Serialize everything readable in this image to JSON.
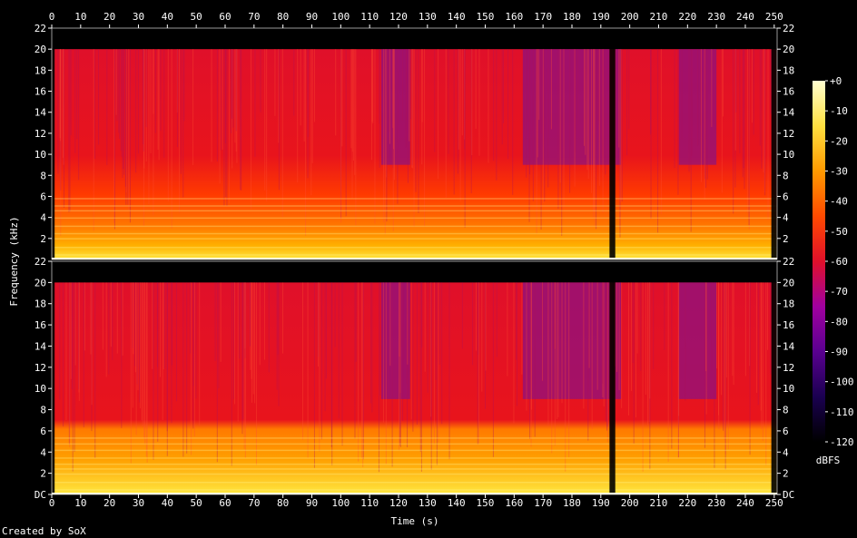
{
  "chart_data": {
    "type": "heatmap",
    "title": "",
    "xlabel": "Time (s)",
    "ylabel": "Frequency (kHz)",
    "xlim": [
      0,
      251
    ],
    "ylim": [
      0,
      22
    ],
    "x_ticks": [
      "0",
      "10",
      "20",
      "30",
      "40",
      "50",
      "60",
      "70",
      "80",
      "90",
      "100",
      "110",
      "120",
      "130",
      "140",
      "150",
      "160",
      "170",
      "180",
      "190",
      "200",
      "210",
      "220",
      "230",
      "240",
      "250"
    ],
    "y_ticks": [
      "DC",
      "2",
      "4",
      "6",
      "8",
      "10",
      "12",
      "14",
      "16",
      "18",
      "20",
      "22"
    ],
    "channels": [
      "upper",
      "lower"
    ],
    "colorbar": {
      "label": "dBFS",
      "ticks": [
        "+0",
        "-10",
        "-20",
        "-30",
        "-40",
        "-50",
        "-60",
        "-70",
        "-80",
        "-90",
        "-100",
        "-110",
        "-120"
      ],
      "range": [
        -120,
        0
      ],
      "colors": [
        "#000000",
        "#1a0050",
        "#5a0090",
        "#a000a0",
        "#e0102a",
        "#ff4a00",
        "#ff9a00",
        "#ffe040",
        "#ffffd0"
      ]
    },
    "content_cutoff_khz": 20,
    "quiet_sections_s": [
      [
        114,
        124
      ],
      [
        163,
        193
      ],
      [
        195,
        197
      ],
      [
        217,
        230
      ]
    ],
    "silence_s": [
      [
        0,
        1
      ],
      [
        193,
        195
      ],
      [
        249,
        251
      ]
    ]
  },
  "footer": {
    "credit": "Created by SoX"
  }
}
